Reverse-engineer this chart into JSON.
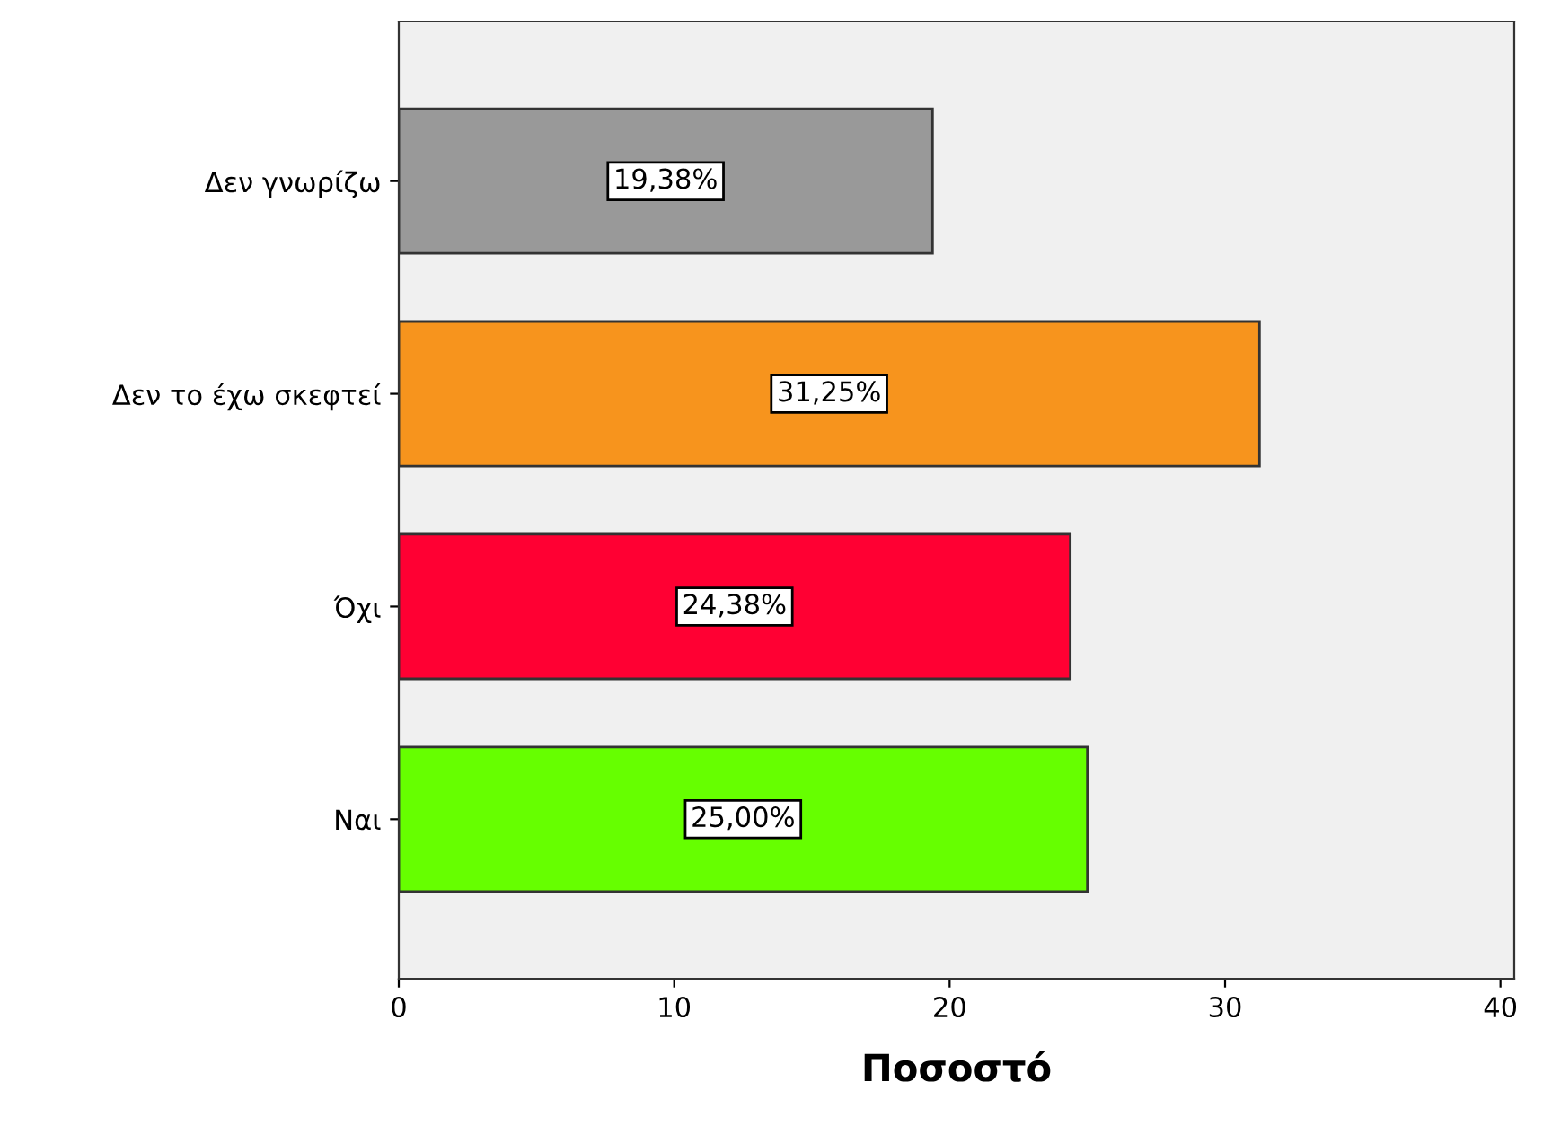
{
  "chart_data": {
    "type": "bar",
    "orientation": "horizontal",
    "xlabel": "Ποσοστό",
    "categories": [
      "Δεν γνωρίζω",
      "Δεν το έχω σκεφτεί",
      "Όχι",
      "Ναι"
    ],
    "values": [
      19.38,
      31.25,
      24.38,
      25.0
    ],
    "value_labels": [
      "19,38%",
      "31,25%",
      "24,38%",
      "25,00%"
    ],
    "colors": [
      "#999999",
      "#f7941d",
      "#ff0033",
      "#66ff00"
    ],
    "xlim": [
      0,
      40.5
    ],
    "xticks": [
      0,
      10,
      20,
      30,
      40
    ],
    "grid": false
  }
}
